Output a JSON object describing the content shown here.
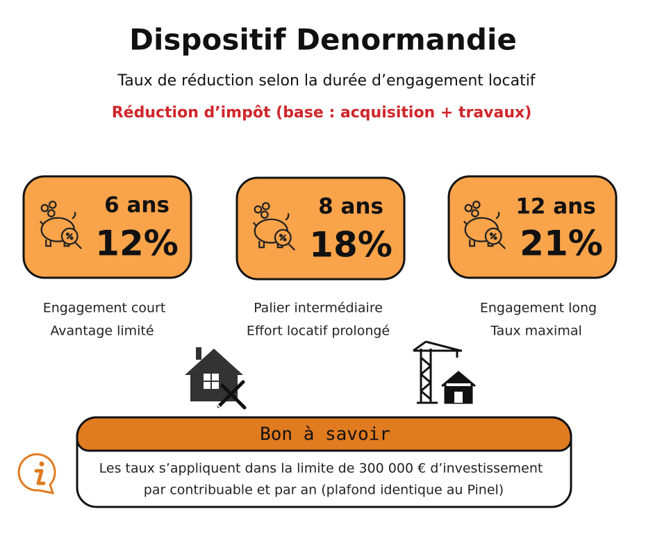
{
  "header": {
    "title": "Dispositif Denormandie",
    "subtitle": "Taux de réduction selon la durée d’engagement locatif",
    "note": "Réduction d’impôt (base : acquisition + travaux)"
  },
  "cards": [
    {
      "duration": "6 ans",
      "rate": "12%",
      "caption": [
        "Engagement court",
        "Avantage limité"
      ]
    },
    {
      "duration": "8 ans",
      "rate": "18%",
      "caption": [
        "Palier intermédiaire",
        "Effort locatif prolongé"
      ]
    },
    {
      "duration": "12 ans",
      "rate": "21%",
      "caption": [
        "Engagement long",
        "Taux maximal"
      ]
    }
  ],
  "info": {
    "title": "Bon à savoir",
    "lines": [
      "Les taux s’appliquent dans la limite de 300 000 € d’investissement",
      "par contribuable et par an (plafond identique au Pinel)"
    ]
  }
}
